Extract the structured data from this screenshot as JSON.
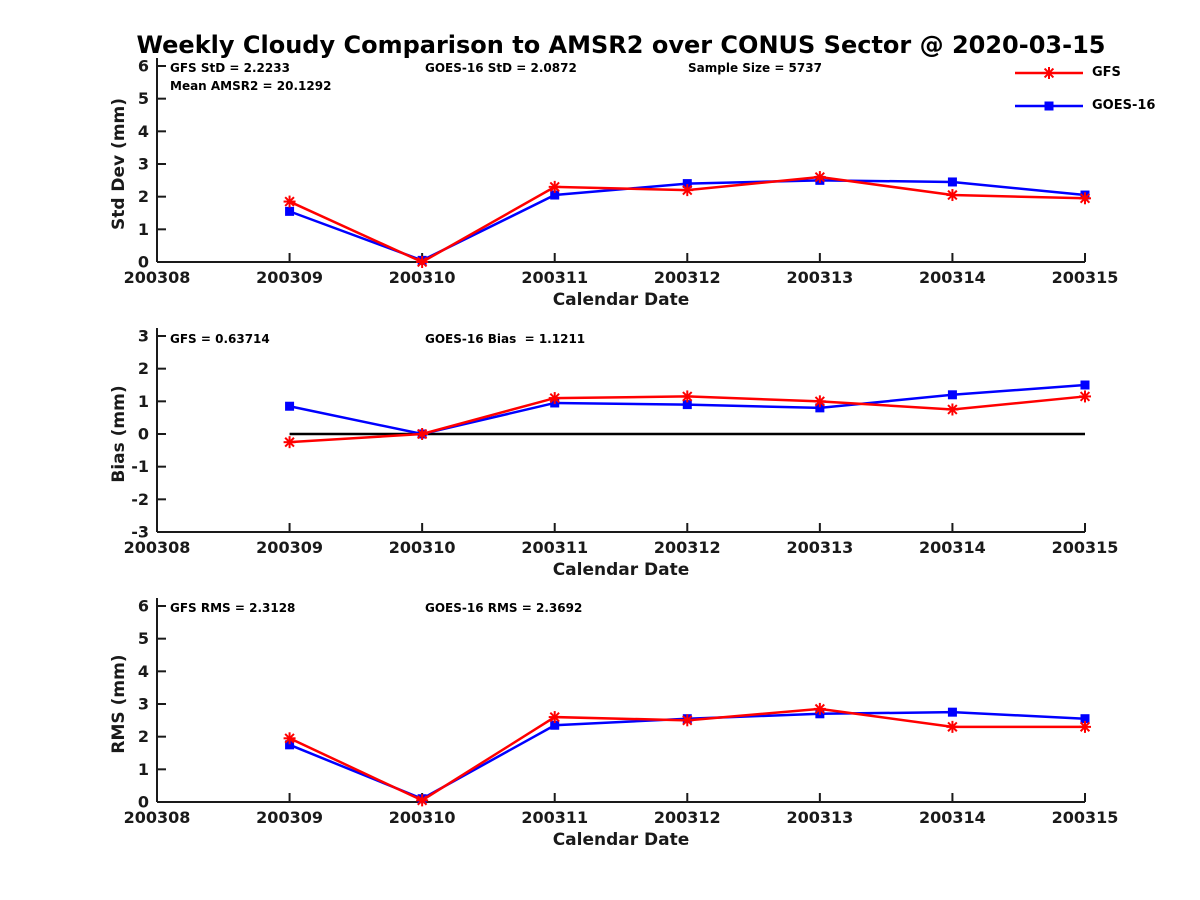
{
  "title": "Weekly Cloudy Comparison to AMSR2 over CONUS Sector @ 2020-03-15",
  "colors": {
    "gfs": "#ff0000",
    "goes16": "#0000ff",
    "axis": "#1a1a1a",
    "zero_line": "#000000",
    "background": "#ffffff"
  },
  "legend": {
    "items": [
      {
        "label": "GFS",
        "color": "#ff0000",
        "marker": "asterisk"
      },
      {
        "label": "GOES-16",
        "color": "#0000ff",
        "marker": "square"
      }
    ]
  },
  "panels": [
    {
      "ylabel": "Std Dev (mm)",
      "xlabel": "Calendar Date",
      "annotations": {
        "left1": "GFS StD = 2.2233",
        "left2": "Mean AMSR2 = 20.1292",
        "mid": "GOES-16 StD = 2.0872",
        "right": "Sample Size = 5737"
      }
    },
    {
      "ylabel": "Bias (mm)",
      "xlabel": "Calendar Date",
      "annotations": {
        "left1": "GFS = 0.63714",
        "mid": "GOES-16 Bias  = 1.1211"
      }
    },
    {
      "ylabel": "RMS (mm)",
      "xlabel": "Calendar Date",
      "annotations": {
        "left1": "GFS RMS = 2.3128",
        "mid": "GOES-16 RMS = 2.3692"
      }
    }
  ],
  "chart_data": [
    {
      "type": "line",
      "panel": "std_dev",
      "ylabel": "Std Dev (mm)",
      "xlabel": "Calendar Date",
      "x_tick_labels": [
        "200308",
        "200309",
        "200310",
        "200311",
        "200312",
        "200313",
        "200314",
        "200315"
      ],
      "x": [
        "200309",
        "200310",
        "200311",
        "200312",
        "200313",
        "200314",
        "200315"
      ],
      "ylim": [
        0,
        6
      ],
      "yticks": [
        0,
        1,
        2,
        3,
        4,
        5,
        6
      ],
      "zero_line": false,
      "series": [
        {
          "name": "GFS",
          "color": "#ff0000",
          "marker": "asterisk",
          "values": [
            1.85,
            0.0,
            2.3,
            2.2,
            2.6,
            2.05,
            1.95
          ]
        },
        {
          "name": "GOES-16",
          "color": "#0000ff",
          "marker": "square",
          "values": [
            1.55,
            0.05,
            2.05,
            2.4,
            2.5,
            2.45,
            2.05
          ]
        }
      ]
    },
    {
      "type": "line",
      "panel": "bias",
      "ylabel": "Bias (mm)",
      "xlabel": "Calendar Date",
      "x_tick_labels": [
        "200308",
        "200309",
        "200310",
        "200311",
        "200312",
        "200313",
        "200314",
        "200315"
      ],
      "x": [
        "200309",
        "200310",
        "200311",
        "200312",
        "200313",
        "200314",
        "200315"
      ],
      "ylim": [
        -3,
        3
      ],
      "yticks": [
        -3,
        -2,
        -1,
        0,
        1,
        2,
        3
      ],
      "zero_line": true,
      "series": [
        {
          "name": "GFS",
          "color": "#ff0000",
          "marker": "asterisk",
          "values": [
            -0.25,
            0.0,
            1.1,
            1.15,
            1.0,
            0.75,
            1.15
          ]
        },
        {
          "name": "GOES-16",
          "color": "#0000ff",
          "marker": "square",
          "values": [
            0.85,
            0.0,
            0.95,
            0.9,
            0.8,
            1.2,
            1.5
          ]
        }
      ]
    },
    {
      "type": "line",
      "panel": "rms",
      "ylabel": "RMS (mm)",
      "xlabel": "Calendar Date",
      "x_tick_labels": [
        "200308",
        "200309",
        "200310",
        "200311",
        "200312",
        "200313",
        "200314",
        "200315"
      ],
      "x": [
        "200309",
        "200310",
        "200311",
        "200312",
        "200313",
        "200314",
        "200315"
      ],
      "ylim": [
        0,
        6
      ],
      "yticks": [
        0,
        1,
        2,
        3,
        4,
        5,
        6
      ],
      "zero_line": false,
      "series": [
        {
          "name": "GFS",
          "color": "#ff0000",
          "marker": "asterisk",
          "values": [
            1.95,
            0.05,
            2.6,
            2.5,
            2.85,
            2.3,
            2.3
          ]
        },
        {
          "name": "GOES-16",
          "color": "#0000ff",
          "marker": "square",
          "values": [
            1.75,
            0.1,
            2.35,
            2.55,
            2.7,
            2.75,
            2.55
          ]
        }
      ]
    }
  ]
}
